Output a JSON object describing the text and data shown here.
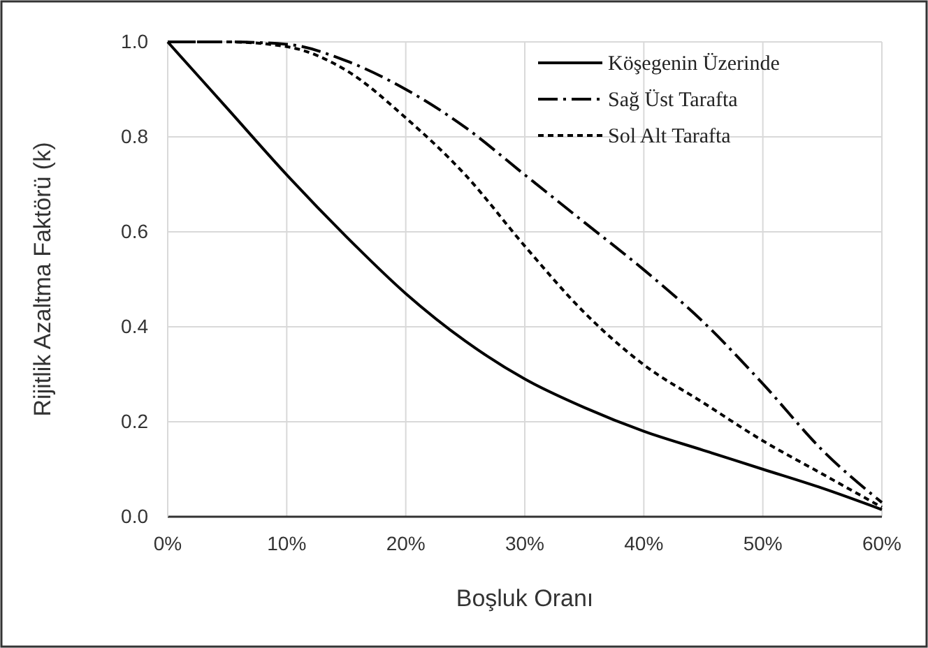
{
  "chart_data": {
    "type": "line",
    "xlabel": "Boşluk Oranı",
    "ylabel": "Rijitlik Azaltma Faktörü (k)",
    "xlim": [
      0,
      60
    ],
    "ylim": [
      0,
      1
    ],
    "xticks": [
      {
        "value": 0,
        "label": "0%"
      },
      {
        "value": 10,
        "label": "10%"
      },
      {
        "value": 20,
        "label": "20%"
      },
      {
        "value": 30,
        "label": "30%"
      },
      {
        "value": 40,
        "label": "40%"
      },
      {
        "value": 50,
        "label": "50%"
      },
      {
        "value": 60,
        "label": "60%"
      }
    ],
    "yticks": [
      {
        "value": 0,
        "label": "0.0"
      },
      {
        "value": 0.2,
        "label": "0.2"
      },
      {
        "value": 0.4,
        "label": "0.4"
      },
      {
        "value": 0.6,
        "label": "0.6"
      },
      {
        "value": 0.8,
        "label": "0.8"
      },
      {
        "value": 1,
        "label": "1.0"
      }
    ],
    "x": [
      0,
      5,
      10,
      15,
      20,
      25,
      30,
      35,
      40,
      45,
      50,
      55,
      60
    ],
    "grid": true,
    "legend": "top right",
    "series": [
      {
        "name": "Köşegenin Üzerinde",
        "color": "#000000",
        "line_style": "solid",
        "values": [
          1.0,
          0.86,
          0.72,
          0.59,
          0.47,
          0.37,
          0.29,
          0.23,
          0.18,
          0.14,
          0.1,
          0.06,
          0.015
        ]
      },
      {
        "name": "Sağ Üst Tarafta",
        "color": "#000000",
        "line_style": "dashdot",
        "values": [
          1.0,
          1.0,
          0.995,
          0.96,
          0.9,
          0.82,
          0.72,
          0.62,
          0.52,
          0.41,
          0.28,
          0.14,
          0.03
        ]
      },
      {
        "name": "Sol Alt Tarafta",
        "color": "#000000",
        "line_style": "dashed",
        "values": [
          1.0,
          1.0,
          0.99,
          0.94,
          0.84,
          0.72,
          0.57,
          0.43,
          0.32,
          0.24,
          0.16,
          0.09,
          0.02
        ]
      }
    ]
  }
}
